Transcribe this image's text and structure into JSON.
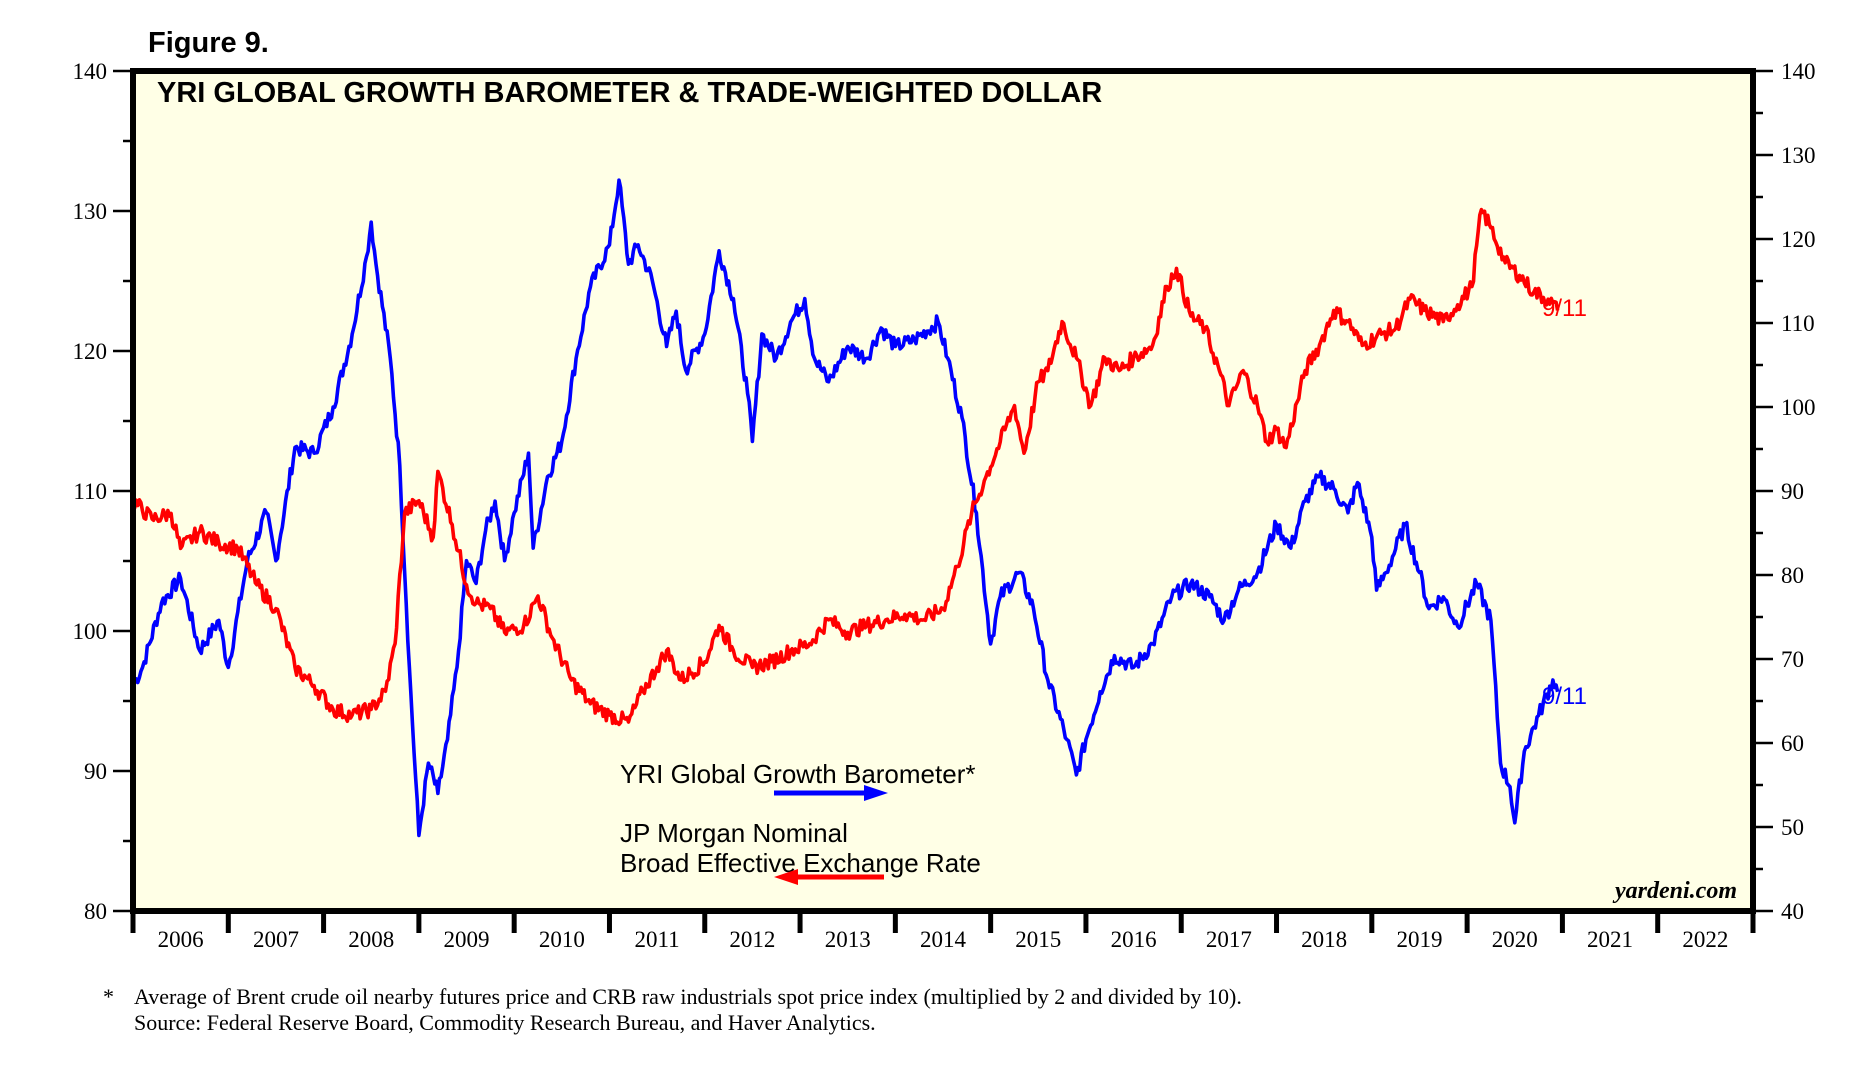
{
  "figure_label": "Figure 9.",
  "brand": "yardeni.com",
  "footnote": {
    "marker": "*",
    "line1": "Average of Brent crude oil nearby futures price and CRB raw industrials spot price index (multiplied by 2 and divided by 10).",
    "line2": "Source: Federal Reserve Board, Commodity Research Bureau, and Haver Analytics."
  },
  "colors": {
    "plot_bg": "#FFFFE6",
    "barometer": "#0000FF",
    "dollar": "#FF0000",
    "frame": "#000000"
  },
  "chart_data": {
    "type": "line",
    "title": "YRI GLOBAL GROWTH BAROMETER & TRADE-WEIGHTED DOLLAR",
    "xlabel": "",
    "xlim": [
      2006,
      2023
    ],
    "x_tick_labels": [
      "2006",
      "2007",
      "2008",
      "2009",
      "2010",
      "2011",
      "2012",
      "2013",
      "2014",
      "2015",
      "2016",
      "2017",
      "2018",
      "2019",
      "2020",
      "2021",
      "2022"
    ],
    "left_axis": {
      "ylim": [
        80,
        140
      ],
      "ticks": [
        "80",
        "90",
        "100",
        "110",
        "120",
        "130",
        "140"
      ]
    },
    "right_axis": {
      "ylim": [
        40,
        140
      ],
      "ticks": [
        "40",
        "50",
        "60",
        "70",
        "80",
        "90",
        "100",
        "110",
        "120",
        "130",
        "140"
      ]
    },
    "legend": [
      {
        "lines": [
          "YRI Global Growth Barometer*"
        ],
        "arrow": "right",
        "series": "barometer"
      },
      {
        "lines": [
          "JP Morgan Nominal",
          "Broad Effective Exchange Rate"
        ],
        "arrow": "left",
        "series": "dollar"
      }
    ],
    "series": [
      {
        "name": "YRI Global Growth Barometer*",
        "key": "barometer",
        "axis": "right",
        "end_label": "9/11",
        "x": [
          2006.0,
          2006.1,
          2006.3,
          2006.5,
          2006.7,
          2006.9,
          2007.0,
          2007.2,
          2007.4,
          2007.5,
          2007.7,
          2007.9,
          2008.1,
          2008.3,
          2008.45,
          2008.5,
          2008.55,
          2008.7,
          2008.8,
          2008.9,
          2009.0,
          2009.1,
          2009.2,
          2009.3,
          2009.4,
          2009.5,
          2009.6,
          2009.7,
          2009.8,
          2009.9,
          2010.0,
          2010.15,
          2010.2,
          2010.35,
          2010.5,
          2010.65,
          2010.8,
          2011.0,
          2011.1,
          2011.2,
          2011.3,
          2011.45,
          2011.6,
          2011.7,
          2011.8,
          2012.0,
          2012.15,
          2012.3,
          2012.45,
          2012.5,
          2012.6,
          2012.75,
          2012.9,
          2013.05,
          2013.15,
          2013.3,
          2013.5,
          2013.7,
          2013.85,
          2014.0,
          2014.2,
          2014.45,
          2014.55,
          2014.7,
          2014.85,
          2015.0,
          2015.1,
          2015.3,
          2015.45,
          2015.6,
          2015.8,
          2015.9,
          2016.0,
          2016.15,
          2016.3,
          2016.5,
          2016.7,
          2016.9,
          2017.1,
          2017.3,
          2017.45,
          2017.6,
          2017.8,
          2018.0,
          2018.15,
          2018.3,
          2018.45,
          2018.6,
          2018.75,
          2018.85,
          2019.0,
          2019.05,
          2019.15,
          2019.35,
          2019.5,
          2019.6,
          2019.75,
          2019.9,
          2020.1,
          2020.25,
          2020.35,
          2020.45,
          2020.5,
          2020.6,
          2020.75,
          2020.9,
          2020.95
        ],
        "values": [
          66.8,
          69,
          76.7,
          79.6,
          71,
          74.6,
          69,
          81.7,
          87.4,
          81.7,
          95.2,
          94.5,
          100,
          108.7,
          117.9,
          122,
          117,
          105.8,
          93,
          69,
          49,
          57.6,
          54,
          60.4,
          69,
          81.7,
          79,
          85.3,
          88.8,
          81.7,
          87.4,
          94.5,
          83.2,
          91.7,
          95.9,
          105.8,
          114.3,
          119.3,
          127,
          117,
          119.3,
          115,
          107.2,
          111.4,
          104.4,
          108.7,
          118.6,
          112.9,
          101.6,
          95.9,
          108.7,
          105.8,
          110.1,
          112.9,
          105.8,
          103,
          107.2,
          105.8,
          109.4,
          107.2,
          108,
          110.1,
          105.8,
          98.7,
          87.4,
          71.8,
          77.4,
          80.3,
          76,
          67.5,
          60.4,
          56.2,
          60.4,
          66.1,
          70.4,
          69,
          71.8,
          77.4,
          79,
          77.4,
          74.6,
          78.2,
          80.3,
          86,
          83.2,
          88.8,
          91.7,
          90.3,
          87.4,
          91,
          84.5,
          78.2,
          80.3,
          86,
          80.3,
          76,
          77.4,
          73.9,
          79,
          74.6,
          57.6,
          54.8,
          50.5,
          59,
          63.3,
          67.5,
          66.1
        ]
      },
      {
        "name": "JP Morgan Nominal Broad Effective Exchange Rate",
        "key": "dollar",
        "axis": "left",
        "end_label": "9/11",
        "x": [
          2006.0,
          2006.2,
          2006.4,
          2006.5,
          2006.7,
          2006.9,
          2007.1,
          2007.3,
          2007.5,
          2007.7,
          2007.9,
          2008.1,
          2008.3,
          2008.5,
          2008.65,
          2008.75,
          2008.85,
          2009.0,
          2009.15,
          2009.2,
          2009.35,
          2009.5,
          2009.6,
          2009.75,
          2009.9,
          2010.1,
          2010.25,
          2010.4,
          2010.6,
          2010.8,
          2011.0,
          2011.2,
          2011.35,
          2011.5,
          2011.6,
          2011.75,
          2012.0,
          2012.15,
          2012.3,
          2012.5,
          2012.7,
          2012.9,
          2013.1,
          2013.3,
          2013.5,
          2013.7,
          2013.9,
          2014.1,
          2014.3,
          2014.5,
          2014.65,
          2014.8,
          2014.95,
          2015.1,
          2015.25,
          2015.35,
          2015.5,
          2015.6,
          2015.75,
          2015.9,
          2016.05,
          2016.2,
          2016.35,
          2016.5,
          2016.7,
          2016.85,
          2016.95,
          2017.1,
          2017.25,
          2017.4,
          2017.5,
          2017.65,
          2017.8,
          2017.9,
          2018.0,
          2018.1,
          2018.3,
          2018.45,
          2018.6,
          2018.75,
          2018.9,
          2019.1,
          2019.25,
          2019.4,
          2019.55,
          2019.75,
          2019.9,
          2020.05,
          2020.15,
          2020.25,
          2020.4,
          2020.55,
          2020.7,
          2020.85,
          2020.95
        ],
        "values": [
          109.3,
          108,
          108.4,
          105.9,
          107.1,
          106.3,
          105.9,
          103.3,
          101.6,
          97.4,
          96.1,
          94.4,
          94,
          94.4,
          95.7,
          99.1,
          108.4,
          109.3,
          106.7,
          111.4,
          107.6,
          103.3,
          102,
          101.6,
          99.9,
          100.4,
          102.5,
          99.5,
          96.5,
          94.8,
          94,
          93.5,
          95.7,
          97.4,
          98.6,
          96.5,
          97.8,
          100.4,
          98.6,
          97.4,
          97.8,
          98.6,
          99.1,
          100.8,
          99.9,
          100.4,
          100.8,
          101.2,
          100.8,
          101.6,
          104.6,
          108.4,
          111,
          113.5,
          116.1,
          112.7,
          117.8,
          118.6,
          122.1,
          119.5,
          116.1,
          119.5,
          118.6,
          119.5,
          120.4,
          124.6,
          125.9,
          122.5,
          121.6,
          118.6,
          116.1,
          118.6,
          116.1,
          113.5,
          114.4,
          113.1,
          118.6,
          120.4,
          122.9,
          122.1,
          120.4,
          121.2,
          121.6,
          123.7,
          122.9,
          122.1,
          123.3,
          124.6,
          130.1,
          128.8,
          126.3,
          125.4,
          124.2,
          123.7,
          122.9
        ]
      }
    ]
  }
}
